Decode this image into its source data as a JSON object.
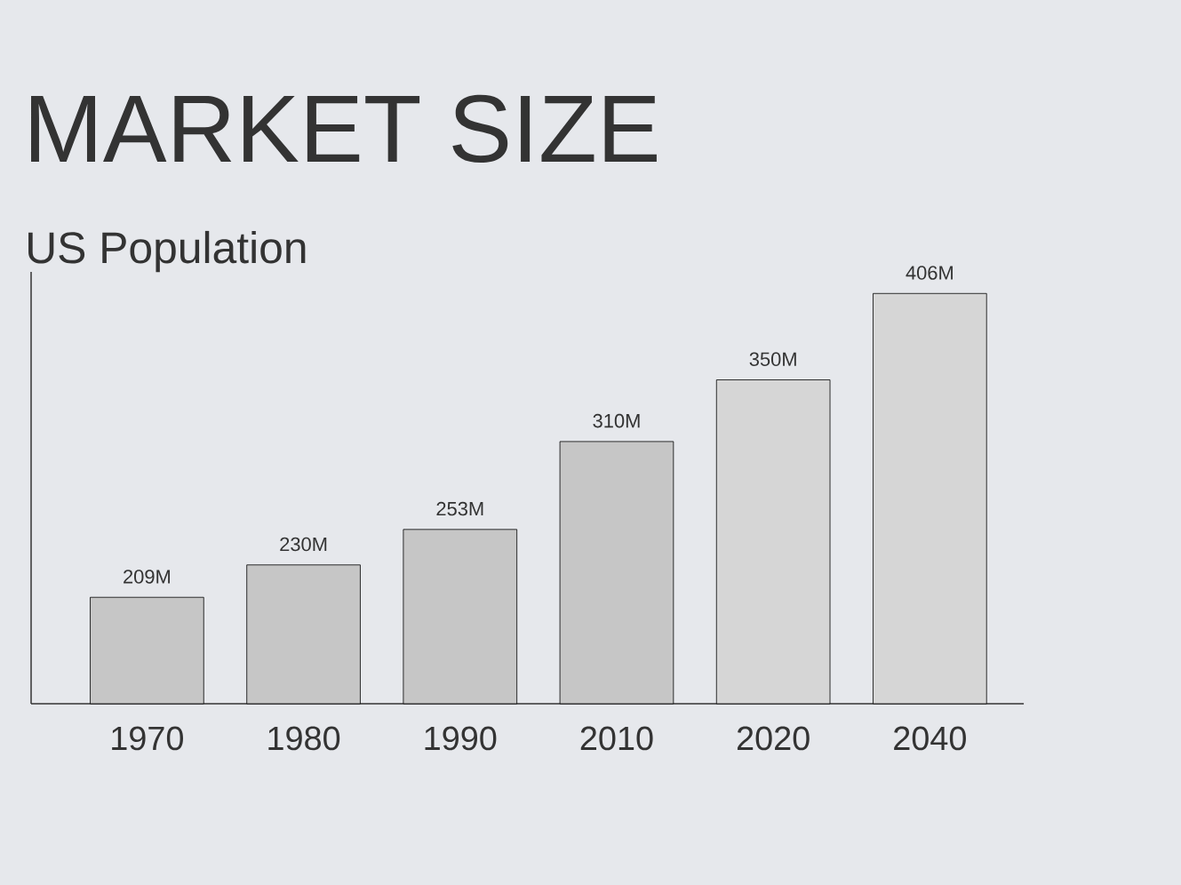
{
  "chart_data": {
    "type": "bar",
    "title": "MARKET SIZE",
    "subtitle": "US Population",
    "categories": [
      "1970",
      "1980",
      "1990",
      "2010",
      "2020",
      "2040"
    ],
    "series": [
      {
        "color": "#c6c6c6",
        "values": [
          209,
          230,
          253,
          310,
          null,
          null
        ],
        "value_labels": [
          "209M",
          "230M",
          "253M",
          "310M",
          null,
          null
        ]
      },
      {
        "color": "#d6d6d6",
        "values": [
          null,
          null,
          null,
          null,
          350,
          406
        ],
        "value_labels": [
          null,
          null,
          null,
          null,
          "350M",
          "406M"
        ]
      }
    ],
    "ylim": [
      140,
      420
    ],
    "tick_labels": "x"
  }
}
